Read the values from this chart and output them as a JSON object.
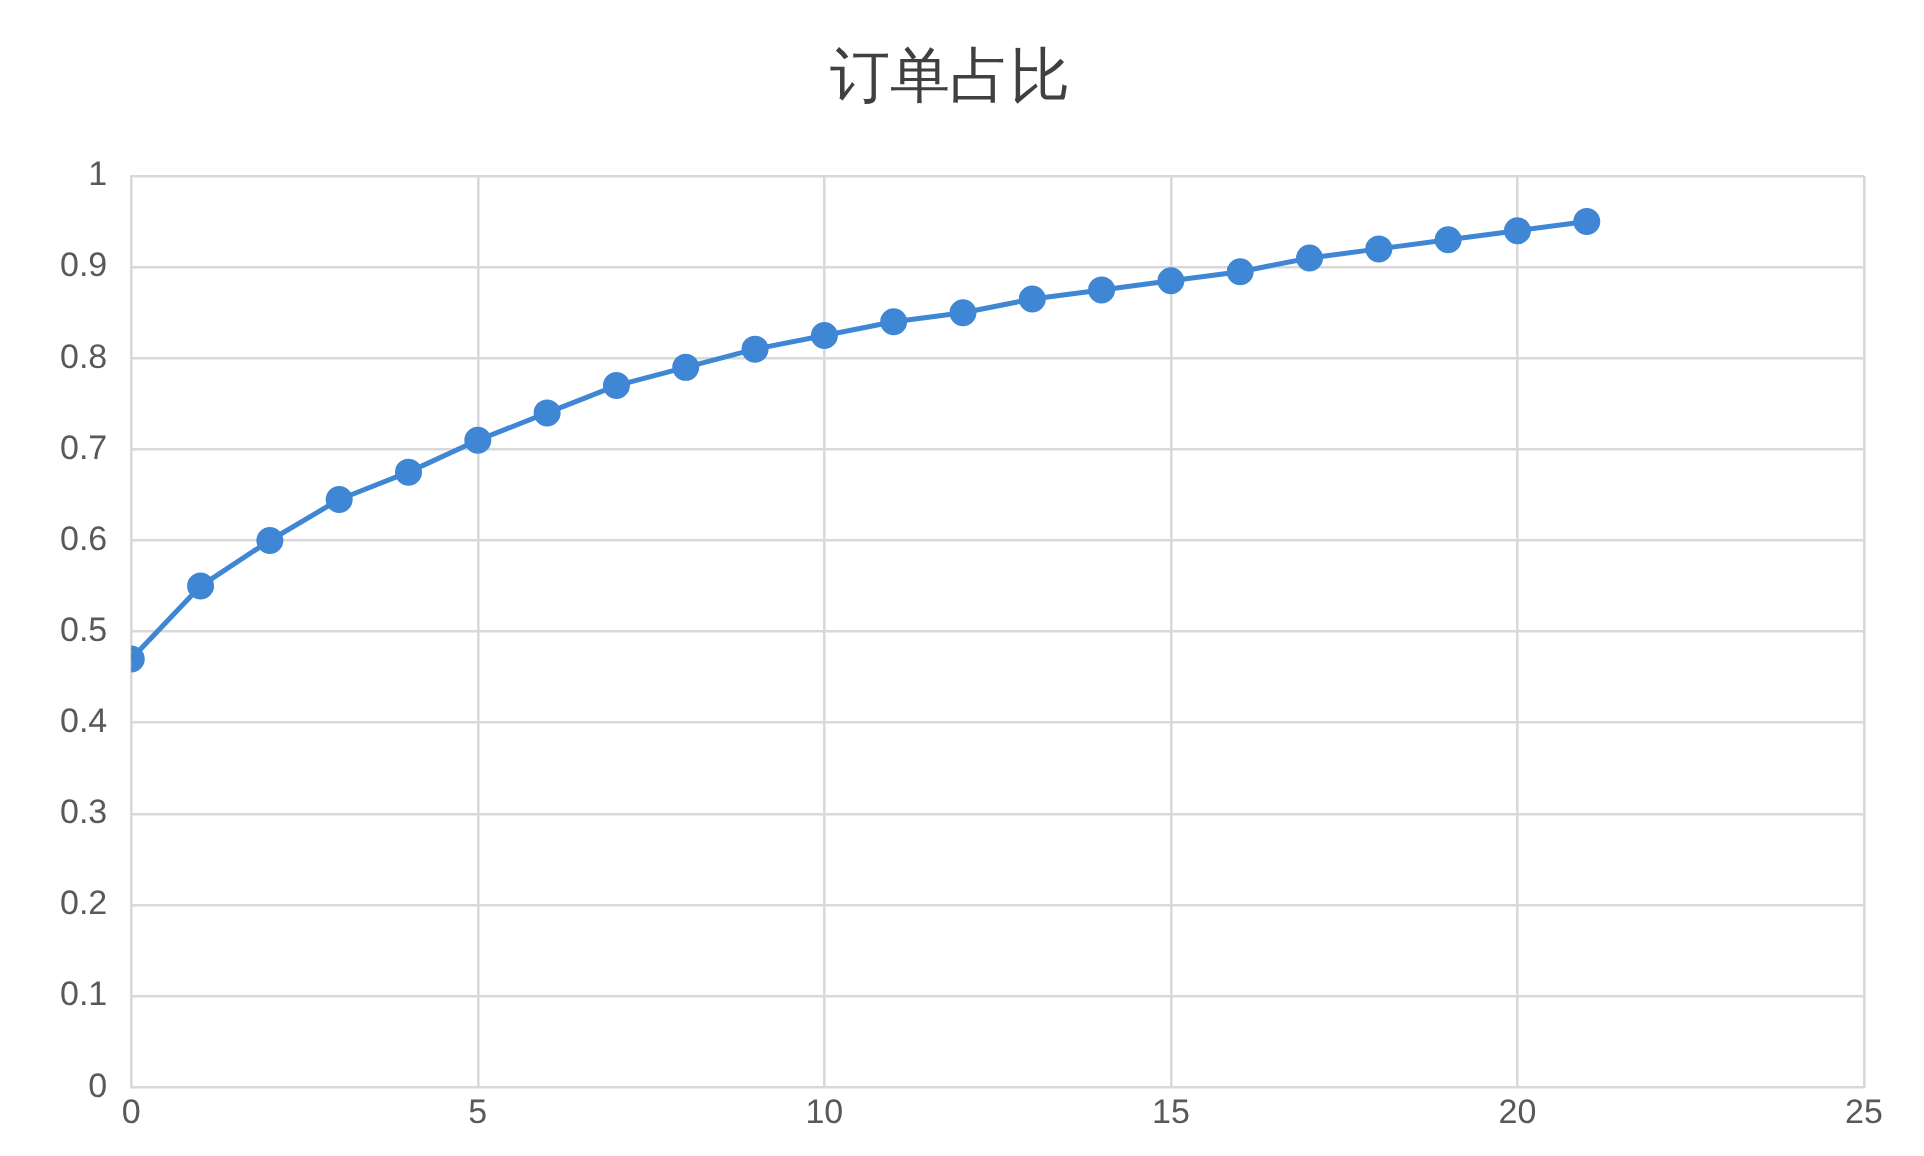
{
  "chart_data": {
    "type": "line",
    "title": "订单占比",
    "x": [
      0,
      1,
      2,
      3,
      4,
      5,
      6,
      7,
      8,
      9,
      10,
      11,
      12,
      13,
      14,
      15,
      16,
      17,
      18,
      19,
      20,
      21
    ],
    "series": [
      {
        "color": "#3f86d4",
        "values": [
          0.47,
          0.55,
          0.6,
          0.645,
          0.675,
          0.71,
          0.74,
          0.77,
          0.79,
          0.81,
          0.825,
          0.84,
          0.85,
          0.865,
          0.875,
          0.885,
          0.895,
          0.91,
          0.92,
          0.93,
          0.94,
          0.95
        ]
      }
    ],
    "xlim": [
      0,
      25
    ],
    "xticks": [
      0,
      5,
      10,
      15,
      20,
      25
    ],
    "ylim": [
      0,
      1
    ],
    "yticks": [
      0,
      0.1,
      0.2,
      0.3,
      0.4,
      0.5,
      0.6,
      0.7,
      0.8,
      0.9,
      1
    ],
    "grid": true,
    "marker": "circle",
    "line_style": "solid"
  }
}
